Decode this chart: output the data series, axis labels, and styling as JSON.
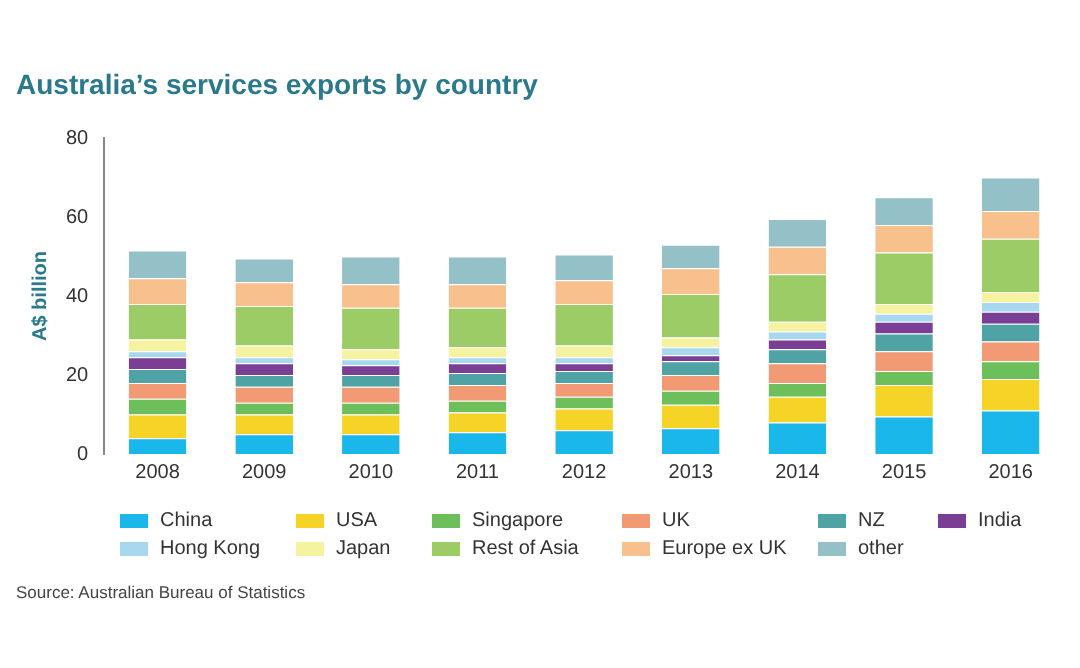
{
  "chart_data": {
    "type": "bar",
    "title": "Australia’s services exports by country",
    "ylabel": "A$ billion",
    "stacked": true,
    "legend": "bottom",
    "grid": false,
    "categories": [
      "2008",
      "2009",
      "2010",
      "2011",
      "2012",
      "2013",
      "2014",
      "2015",
      "2016"
    ],
    "ylim": [
      0,
      80
    ],
    "yticks": [
      0,
      20,
      40,
      60,
      80
    ],
    "series": [
      {
        "name": "China",
        "color": "#1ab7ea",
        "values": [
          4,
          5,
          5,
          5.5,
          6,
          6.5,
          8,
          9.5,
          11
        ]
      },
      {
        "name": "USA",
        "color": "#f5d327",
        "values": [
          6,
          5,
          5,
          5,
          5.5,
          6,
          6.5,
          8,
          8
        ]
      },
      {
        "name": "Singapore",
        "color": "#6dbf5b",
        "values": [
          4,
          3,
          3,
          3,
          3,
          3.5,
          3.5,
          3.5,
          4.5
        ]
      },
      {
        "name": "UK",
        "color": "#f19a73",
        "values": [
          4,
          4,
          4,
          4,
          3.5,
          4,
          5,
          5,
          5
        ]
      },
      {
        "name": "NZ",
        "color": "#4fa3a5",
        "values": [
          3.5,
          3,
          3,
          3,
          3,
          3.5,
          3.5,
          4.5,
          4.5
        ]
      },
      {
        "name": "India",
        "color": "#7a3f94",
        "values": [
          3,
          3,
          2.5,
          2.5,
          2,
          1.5,
          2.5,
          3,
          3
        ]
      },
      {
        "name": "Hong Kong",
        "color": "#a8d8f0",
        "values": [
          1.5,
          1.5,
          1.5,
          1.5,
          1.5,
          2,
          2,
          2,
          2.5
        ]
      },
      {
        "name": "Japan",
        "color": "#f5f3a0",
        "values": [
          3,
          3,
          2.5,
          2.5,
          3,
          2.5,
          2.5,
          2.5,
          2.5
        ]
      },
      {
        "name": "Rest of Asia",
        "color": "#9ccc65",
        "values": [
          9,
          10,
          10.5,
          10,
          10.5,
          11,
          12,
          13,
          13.5
        ]
      },
      {
        "name": "Europe ex UK",
        "color": "#f7c08c",
        "values": [
          6.5,
          6,
          6,
          6,
          6,
          6.5,
          7,
          7,
          7
        ]
      },
      {
        "name": "other",
        "color": "#94c0c8",
        "values": [
          7,
          6,
          7,
          7,
          6.5,
          6,
          7,
          7,
          8.5
        ]
      }
    ],
    "annotations": [
      "Source: Australian Bureau of Statistics"
    ]
  }
}
